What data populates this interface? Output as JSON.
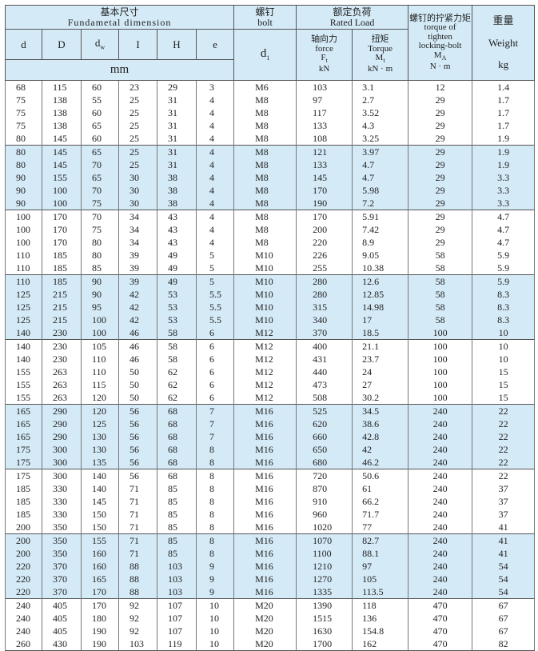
{
  "header": {
    "fundamental_cn": "基本尺寸",
    "fundamental_en": "Fundametal dimension",
    "bolt_cn": "螺钉",
    "bolt_en": "bolt",
    "rated_cn": "额定负荷",
    "rated_en": "Rated Load",
    "tight_cn": "螺钉的拧紧力矩",
    "tight_en1": "torque of",
    "tight_en2": "tighten",
    "tight_en3": "locking-bolt",
    "tight_sym": "M",
    "tight_sub": "A",
    "tight_unit": "N · m",
    "weight_cn": "重量",
    "weight_en": "Weight",
    "weight_unit": "kg",
    "cols": [
      "d",
      "D",
      "d",
      "I",
      "H",
      "e"
    ],
    "dw_sub": "w",
    "mm": "mm",
    "d1": "d",
    "d1_sub": "1",
    "force_cn": "轴向力",
    "force_en": "force",
    "force_sym": "F",
    "force_sub": "t",
    "force_unit": "kN",
    "torque_cn": "扭矩",
    "torque_en": "Torque",
    "torque_sym": "M",
    "torque_sub": "t",
    "torque_unit": "kN · m"
  },
  "row_fill": "#d4eaf7",
  "groups": [
    {
      "shaded": false,
      "rows": [
        [
          "68",
          "115",
          "60",
          "23",
          "29",
          "3",
          "M6",
          "103",
          "3.1",
          "12",
          "1.4"
        ],
        [
          "75",
          "138",
          "55",
          "25",
          "31",
          "4",
          "M8",
          "97",
          "2.7",
          "29",
          "1.7"
        ],
        [
          "75",
          "138",
          "60",
          "25",
          "31",
          "4",
          "M8",
          "117",
          "3.52",
          "29",
          "1.7"
        ],
        [
          "75",
          "138",
          "65",
          "25",
          "31",
          "4",
          "M8",
          "133",
          "4.3",
          "29",
          "1.7"
        ],
        [
          "80",
          "145",
          "60",
          "25",
          "31",
          "4",
          "M8",
          "108",
          "3.25",
          "29",
          "1.9"
        ]
      ]
    },
    {
      "shaded": true,
      "rows": [
        [
          "80",
          "145",
          "65",
          "25",
          "31",
          "4",
          "M8",
          "121",
          "3.97",
          "29",
          "1.9"
        ],
        [
          "80",
          "145",
          "70",
          "25",
          "31",
          "4",
          "M8",
          "133",
          "4.7",
          "29",
          "1.9"
        ],
        [
          "90",
          "155",
          "65",
          "30",
          "38",
          "4",
          "M8",
          "145",
          "4.7",
          "29",
          "3.3"
        ],
        [
          "90",
          "100",
          "70",
          "30",
          "38",
          "4",
          "M8",
          "170",
          "5.98",
          "29",
          "3.3"
        ],
        [
          "90",
          "100",
          "75",
          "30",
          "38",
          "4",
          "M8",
          "190",
          "7.2",
          "29",
          "3.3"
        ]
      ]
    },
    {
      "shaded": false,
      "rows": [
        [
          "100",
          "170",
          "70",
          "34",
          "43",
          "4",
          "M8",
          "170",
          "5.91",
          "29",
          "4.7"
        ],
        [
          "100",
          "170",
          "75",
          "34",
          "43",
          "4",
          "M8",
          "200",
          "7.42",
          "29",
          "4.7"
        ],
        [
          "100",
          "170",
          "80",
          "34",
          "43",
          "4",
          "M8",
          "220",
          "8.9",
          "29",
          "4.7"
        ],
        [
          "110",
          "185",
          "80",
          "39",
          "49",
          "5",
          "M10",
          "226",
          "9.05",
          "58",
          "5.9"
        ],
        [
          "110",
          "185",
          "85",
          "39",
          "49",
          "5",
          "M10",
          "255",
          "10.38",
          "58",
          "5.9"
        ]
      ]
    },
    {
      "shaded": true,
      "rows": [
        [
          "110",
          "185",
          "90",
          "39",
          "49",
          "5",
          "M10",
          "280",
          "12.6",
          "58",
          "5.9"
        ],
        [
          "125",
          "215",
          "90",
          "42",
          "53",
          "5.5",
          "M10",
          "280",
          "12.85",
          "58",
          "8.3"
        ],
        [
          "125",
          "215",
          "95",
          "42",
          "53",
          "5.5",
          "M10",
          "315",
          "14.98",
          "58",
          "8.3"
        ],
        [
          "125",
          "215",
          "100",
          "42",
          "53",
          "5.5",
          "M10",
          "340",
          "17",
          "58",
          "8.3"
        ],
        [
          "140",
          "230",
          "100",
          "46",
          "58",
          "6",
          "M12",
          "370",
          "18.5",
          "100",
          "10"
        ]
      ]
    },
    {
      "shaded": false,
      "rows": [
        [
          "140",
          "230",
          "105",
          "46",
          "58",
          "6",
          "M12",
          "400",
          "21.1",
          "100",
          "10"
        ],
        [
          "140",
          "230",
          "110",
          "46",
          "58",
          "6",
          "M12",
          "431",
          "23.7",
          "100",
          "10"
        ],
        [
          "155",
          "263",
          "110",
          "50",
          "62",
          "6",
          "M12",
          "440",
          "24",
          "100",
          "15"
        ],
        [
          "155",
          "263",
          "115",
          "50",
          "62",
          "6",
          "M12",
          "473",
          "27",
          "100",
          "15"
        ],
        [
          "155",
          "263",
          "120",
          "50",
          "62",
          "6",
          "M12",
          "508",
          "30.2",
          "100",
          "15"
        ]
      ]
    },
    {
      "shaded": true,
      "rows": [
        [
          "165",
          "290",
          "120",
          "56",
          "68",
          "7",
          "M16",
          "525",
          "34.5",
          "240",
          "22"
        ],
        [
          "165",
          "290",
          "125",
          "56",
          "68",
          "7",
          "M16",
          "620",
          "38.6",
          "240",
          "22"
        ],
        [
          "165",
          "290",
          "130",
          "56",
          "68",
          "7",
          "M16",
          "660",
          "42.8",
          "240",
          "22"
        ],
        [
          "175",
          "300",
          "130",
          "56",
          "68",
          "8",
          "M16",
          "650",
          "42",
          "240",
          "22"
        ],
        [
          "175",
          "300",
          "135",
          "56",
          "68",
          "8",
          "M16",
          "680",
          "46.2",
          "240",
          "22"
        ]
      ]
    },
    {
      "shaded": false,
      "rows": [
        [
          "175",
          "300",
          "140",
          "56",
          "68",
          "8",
          "M16",
          "720",
          "50.6",
          "240",
          "22"
        ],
        [
          "185",
          "330",
          "140",
          "71",
          "85",
          "8",
          "M16",
          "870",
          "61",
          "240",
          "37"
        ],
        [
          "185",
          "330",
          "145",
          "71",
          "85",
          "8",
          "M16",
          "910",
          "66.2",
          "240",
          "37"
        ],
        [
          "185",
          "330",
          "150",
          "71",
          "85",
          "8",
          "M16",
          "960",
          "71.7",
          "240",
          "37"
        ],
        [
          "200",
          "350",
          "150",
          "71",
          "85",
          "8",
          "M16",
          "1020",
          "77",
          "240",
          "41"
        ]
      ]
    },
    {
      "shaded": true,
      "rows": [
        [
          "200",
          "350",
          "155",
          "71",
          "85",
          "8",
          "M16",
          "1070",
          "82.7",
          "240",
          "41"
        ],
        [
          "200",
          "350",
          "160",
          "71",
          "85",
          "8",
          "M16",
          "1100",
          "88.1",
          "240",
          "41"
        ],
        [
          "220",
          "370",
          "160",
          "88",
          "103",
          "9",
          "M16",
          "1210",
          "97",
          "240",
          "54"
        ],
        [
          "220",
          "370",
          "165",
          "88",
          "103",
          "9",
          "M16",
          "1270",
          "105",
          "240",
          "54"
        ],
        [
          "220",
          "370",
          "170",
          "88",
          "103",
          "9",
          "M16",
          "1335",
          "113.5",
          "240",
          "54"
        ]
      ]
    },
    {
      "shaded": false,
      "rows": [
        [
          "240",
          "405",
          "170",
          "92",
          "107",
          "10",
          "M20",
          "1390",
          "118",
          "470",
          "67"
        ],
        [
          "240",
          "405",
          "180",
          "92",
          "107",
          "10",
          "M20",
          "1515",
          "136",
          "470",
          "67"
        ],
        [
          "240",
          "405",
          "190",
          "92",
          "107",
          "10",
          "M20",
          "1630",
          "154.8",
          "470",
          "67"
        ],
        [
          "260",
          "430",
          "190",
          "103",
          "119",
          "10",
          "M20",
          "1700",
          "162",
          "470",
          "82"
        ]
      ]
    }
  ]
}
